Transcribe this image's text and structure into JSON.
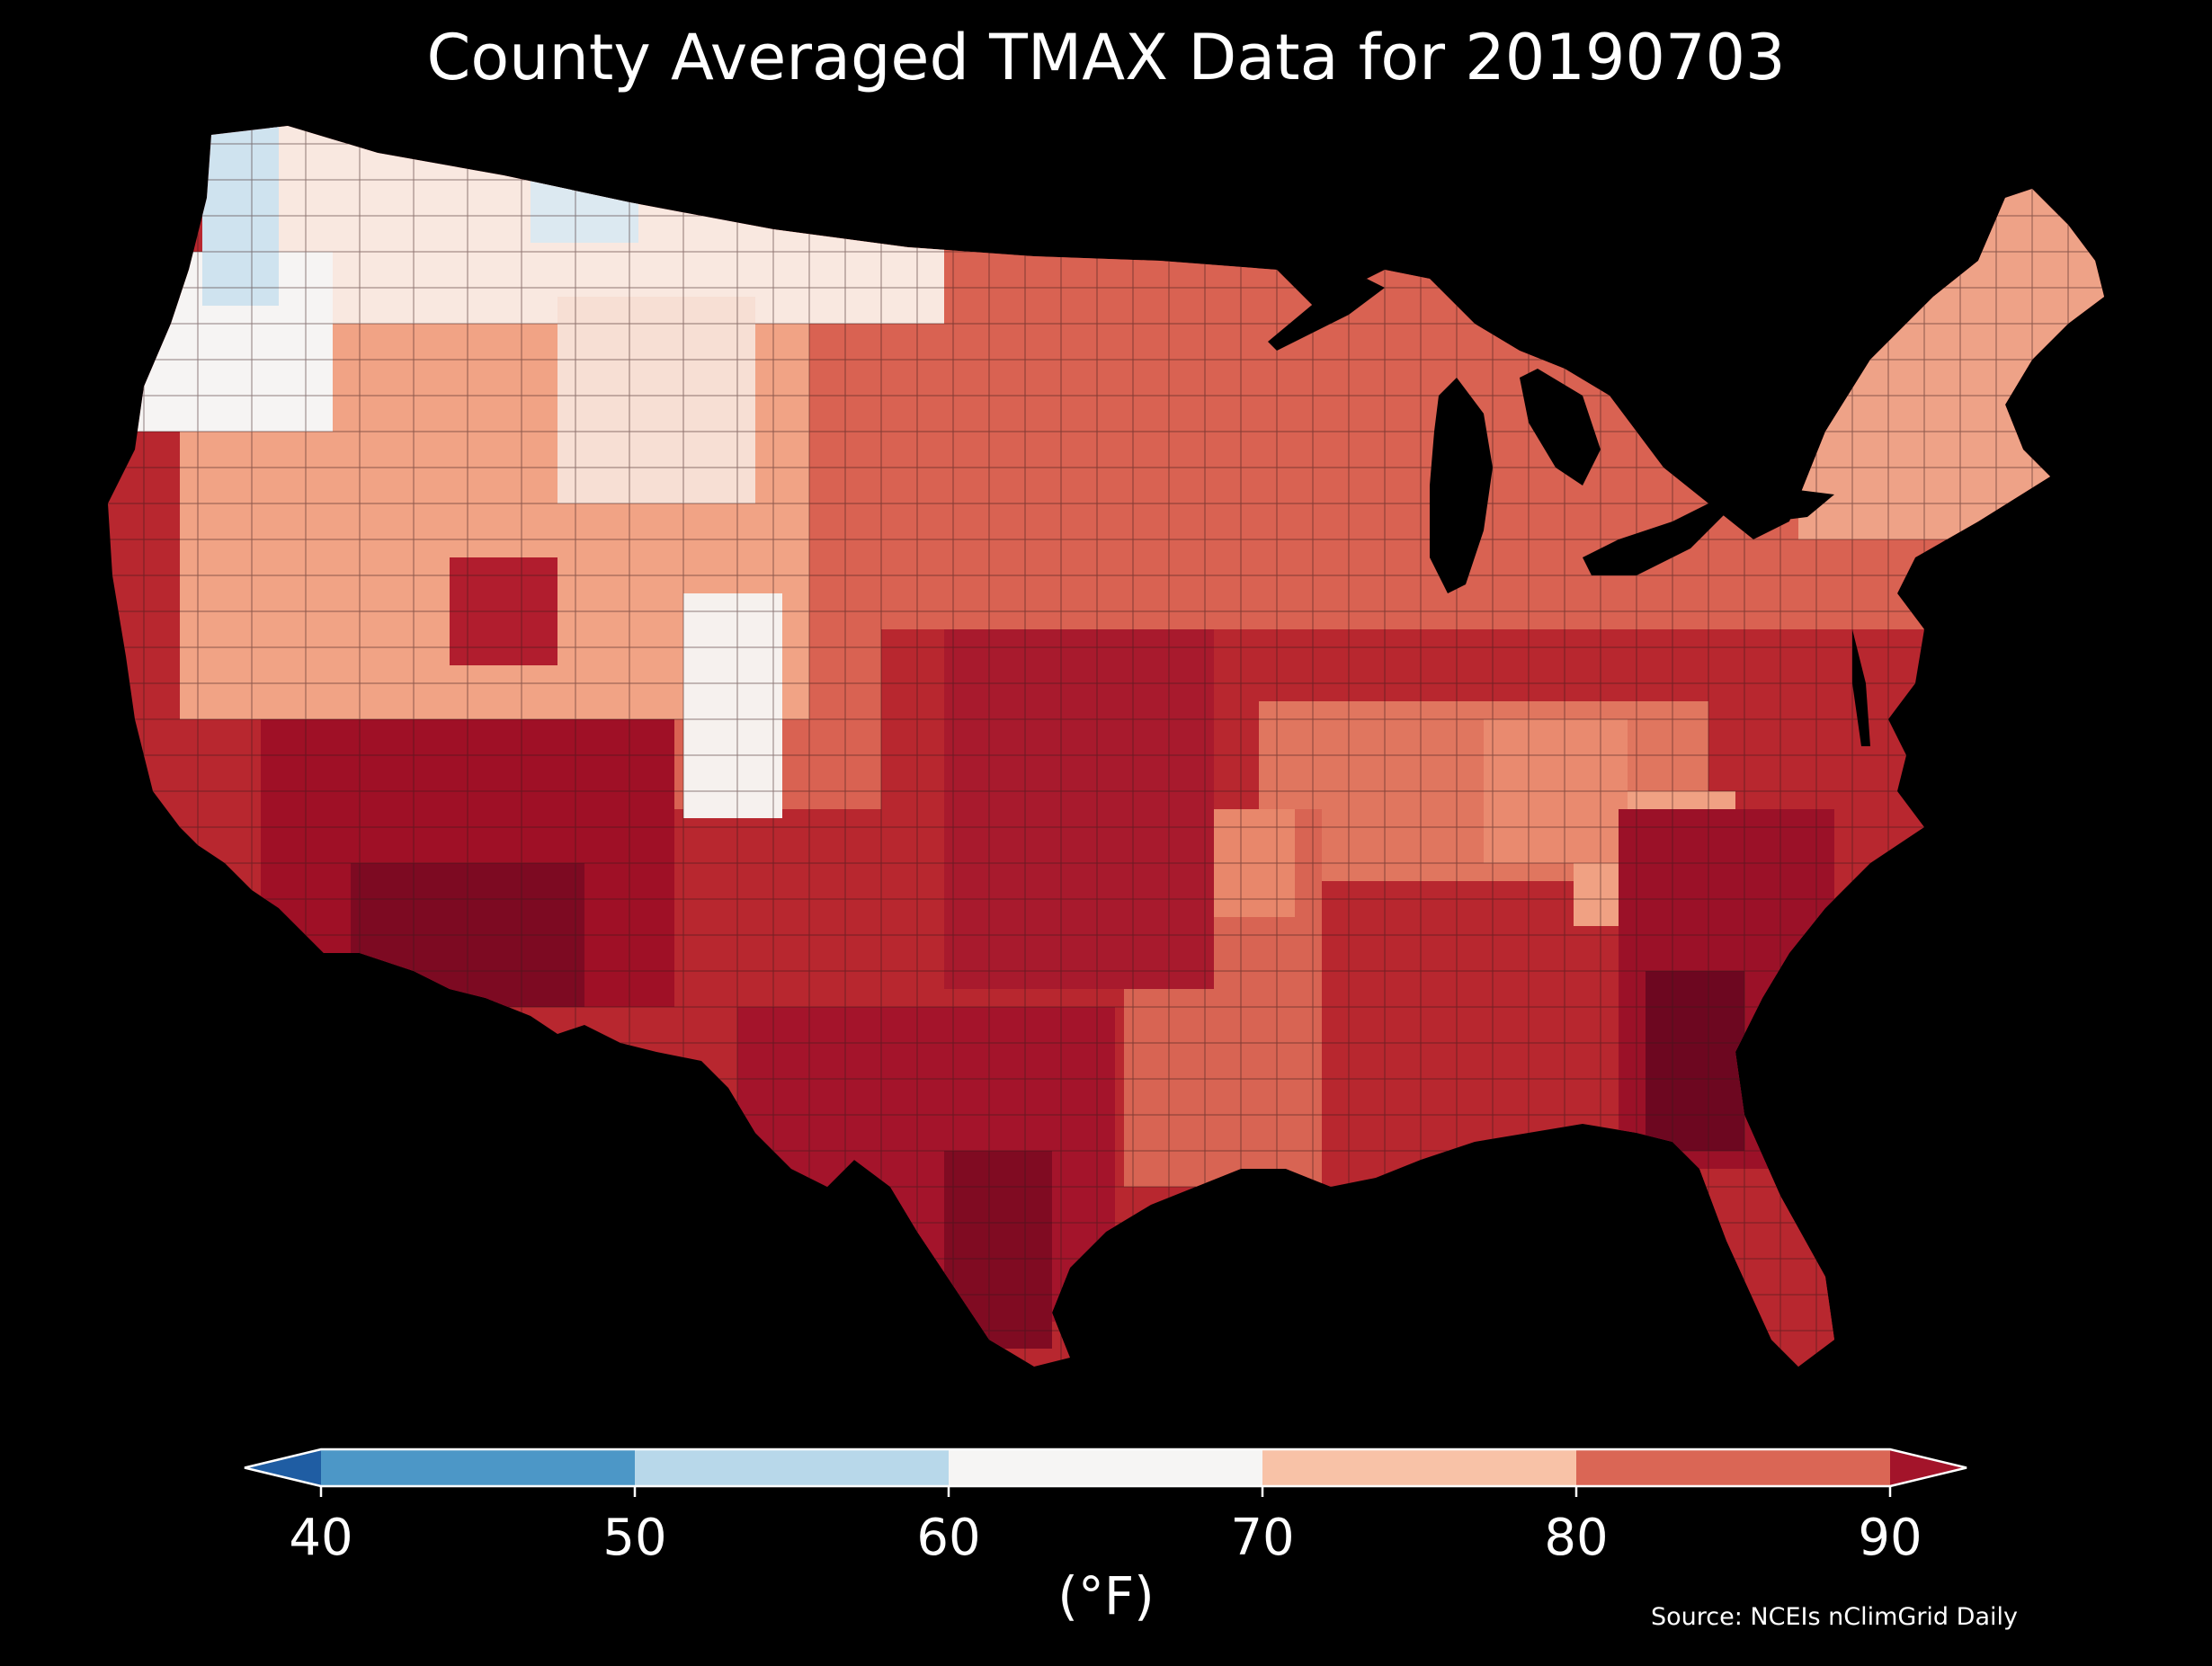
{
  "title": "County Averaged TMAX Data for 20190703",
  "colorbar": {
    "unit_label": "(°F)",
    "ticks": [
      "40",
      "50",
      "60",
      "70",
      "80",
      "90"
    ],
    "bins": [
      {
        "range": "< 40",
        "color": "#1f5da3"
      },
      {
        "range": "40-50",
        "color": "#4c97c7"
      },
      {
        "range": "50-60",
        "color": "#b8d8ea"
      },
      {
        "range": "60-70",
        "color": "#f6f5f4"
      },
      {
        "range": "70-80",
        "color": "#f8c2a7"
      },
      {
        "range": "80-90",
        "color": "#da6655"
      },
      {
        "range": "> 90",
        "color": "#a3142a"
      }
    ]
  },
  "source": "Source: NCEIs nClimGrid Daily",
  "map": {
    "background": "#000000",
    "ocean_lakes_color": "#000000",
    "border_color": "#3a1a1a"
  }
}
